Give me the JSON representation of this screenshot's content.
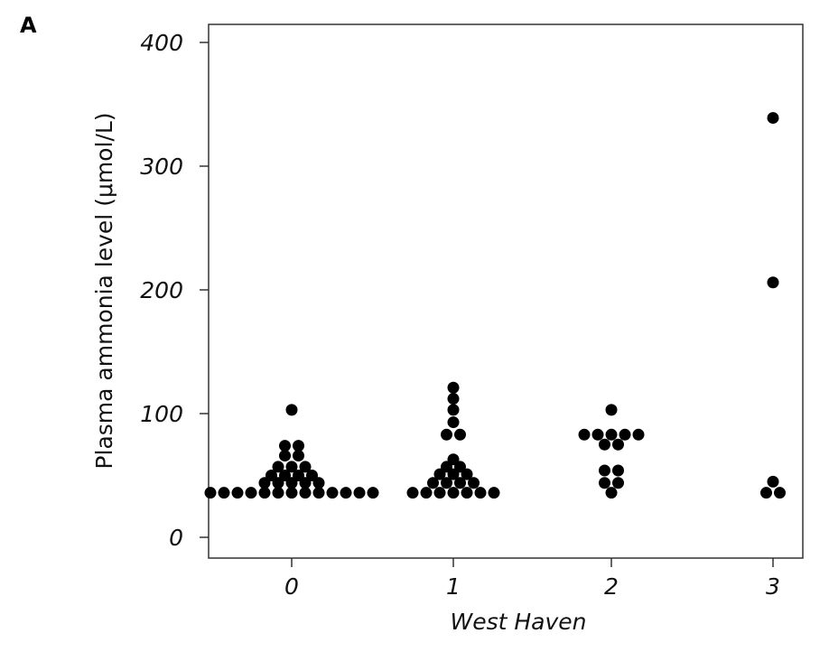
{
  "panel_label": "A",
  "chart_data": {
    "type": "scatter",
    "subtype": "dot-plot",
    "title": "",
    "xlabel": "West Haven",
    "ylabel": "Plasma ammonia level (μmol/L)",
    "categories": [
      "0",
      "1",
      "2",
      "3"
    ],
    "ylim": [
      -20,
      400
    ],
    "yticks": [
      0,
      100,
      200,
      300,
      400
    ],
    "grid": false,
    "legend": "none",
    "marker_color": "#000000",
    "groups": [
      {
        "category": "0",
        "rows": [
          {
            "y": 36,
            "count": 13
          },
          {
            "y": 44,
            "count": 5
          },
          {
            "y": 50,
            "count": 4
          },
          {
            "y": 57,
            "count": 3
          },
          {
            "y": 66,
            "count": 2
          },
          {
            "y": 74,
            "count": 2
          },
          {
            "y": 103,
            "count": 1
          }
        ]
      },
      {
        "category": "1",
        "rows": [
          {
            "y": 36,
            "count": 7
          },
          {
            "y": 44,
            "count": 4
          },
          {
            "y": 51,
            "count": 3
          },
          {
            "y": 57,
            "count": 2
          },
          {
            "y": 63,
            "count": 1
          },
          {
            "y": 83,
            "count": 2
          },
          {
            "y": 93,
            "count": 1
          },
          {
            "y": 103,
            "count": 1
          },
          {
            "y": 112,
            "count": 1
          },
          {
            "y": 121,
            "count": 1
          }
        ]
      },
      {
        "category": "2",
        "rows": [
          {
            "y": 36,
            "count": 1
          },
          {
            "y": 44,
            "count": 2
          },
          {
            "y": 54,
            "count": 2
          },
          {
            "y": 75,
            "count": 2
          },
          {
            "y": 83,
            "count": 5
          },
          {
            "y": 103,
            "count": 1
          }
        ]
      },
      {
        "category": "3",
        "rows": [
          {
            "y": 36,
            "count": 2
          },
          {
            "y": 45,
            "count": 1
          },
          {
            "y": 206,
            "count": 1
          },
          {
            "y": 339,
            "count": 1
          }
        ]
      }
    ]
  }
}
